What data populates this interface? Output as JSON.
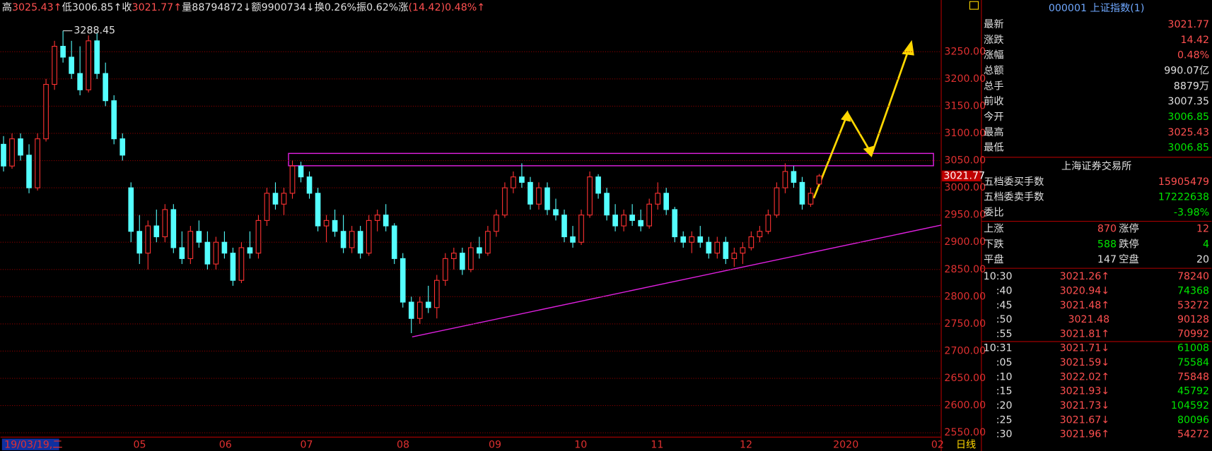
{
  "top_bar": {
    "items": [
      {
        "label": "高",
        "value": "3025.43↑",
        "color": "#ff5050"
      },
      {
        "label": "低",
        "value": "3006.85↑",
        "color": "#e0e0e0"
      },
      {
        "label": "收",
        "value": "3021.77↑",
        "color": "#ff5050"
      },
      {
        "label": "量",
        "value": "88794872↓",
        "color": "#e0e0e0"
      },
      {
        "label": "额",
        "value": "9900734↓",
        "color": "#e0e0e0"
      },
      {
        "label": "换",
        "value": "0.26%",
        "color": "#e0e0e0"
      },
      {
        "label": "振",
        "value": "0.62%",
        "color": "#e0e0e0"
      },
      {
        "label": "涨",
        "value": "(14.42)0.48%↑",
        "color": "#ff5050"
      }
    ]
  },
  "chart": {
    "type": "candlestick",
    "peak": 3288.45,
    "last_price": 3021.77,
    "ylim": [
      2542,
      3345
    ],
    "yticks": [
      {
        "value": 2550,
        "label": "2550.00"
      },
      {
        "value": 2600,
        "label": "2600.00"
      },
      {
        "value": 2650,
        "label": "2650.00"
      },
      {
        "value": 2700,
        "label": "2700.00"
      },
      {
        "value": 2750,
        "label": "2750.00"
      },
      {
        "value": 2800,
        "label": "2800.00"
      },
      {
        "value": 2850,
        "label": "2850.00"
      },
      {
        "value": 2900,
        "label": "2900.00"
      },
      {
        "value": 2950,
        "label": "2950.00"
      },
      {
        "value": 3000,
        "label": "3000.00"
      },
      {
        "value": 3050,
        "label": "3050.00"
      },
      {
        "value": 3100,
        "label": "3100.00"
      },
      {
        "value": 3150,
        "label": "3150.00"
      },
      {
        "value": 3200,
        "label": "3200.00"
      },
      {
        "value": 3250,
        "label": "3250.00"
      }
    ],
    "x_labels": [
      "19/03/19,二",
      "05",
      "06",
      "07",
      "08",
      "09",
      "10",
      "11",
      "12",
      "2020",
      "02"
    ],
    "period": "日线",
    "up_color": "#ff3232",
    "down_color": "#54ffff",
    "grid_color": "#8b0000",
    "open": [
      3080,
      3040,
      3090,
      3060,
      3000,
      3090,
      3190,
      3260,
      3240,
      3210,
      3180,
      3270,
      3210,
      3160,
      3090,
      3000,
      2920,
      2880,
      2930,
      2910,
      2960,
      2890,
      2870,
      2920,
      2900,
      2860,
      2900,
      2880,
      2830,
      2890,
      2880,
      2940,
      2990,
      2970,
      2990,
      3040,
      3020,
      2990,
      2930,
      2940,
      2920,
      2890,
      2920,
      2880,
      2940,
      2950,
      2930,
      2870,
      2790,
      2760,
      2790,
      2780,
      2830,
      2870,
      2880,
      2850,
      2890,
      2880,
      2920,
      2950,
      3000,
      3020,
      3010,
      2970,
      3000,
      2960,
      2950,
      2910,
      2900,
      2950,
      3020,
      2990,
      2950,
      2930,
      2950,
      2940,
      2930,
      2970,
      2990,
      2960,
      2910,
      2900,
      2910,
      2900,
      2880,
      2900,
      2870,
      2880,
      2890,
      2910,
      2920,
      2950,
      3000,
      3030,
      3010,
      2970,
      3006.85
    ],
    "high": [
      3095,
      3100,
      3100,
      3080,
      3100,
      3200,
      3270,
      3288.45,
      3270,
      3260,
      3280,
      3285,
      3230,
      3170,
      3100,
      3010,
      2950,
      2940,
      2960,
      2970,
      2970,
      2920,
      2930,
      2940,
      2920,
      2910,
      2920,
      2890,
      2900,
      2920,
      2950,
      3000,
      3010,
      3000,
      3050,
      3048,
      3030,
      3000,
      2950,
      2960,
      2950,
      2930,
      2930,
      2950,
      2960,
      2970,
      2935,
      2880,
      2800,
      2800,
      2820,
      2840,
      2880,
      2890,
      2890,
      2900,
      2910,
      2930,
      2960,
      3010,
      3030,
      3045,
      3020,
      3010,
      3010,
      2980,
      2960,
      2930,
      2960,
      3030,
      3025,
      3000,
      2970,
      2960,
      2970,
      2960,
      2980,
      3010,
      3000,
      2965,
      2920,
      2920,
      2930,
      2910,
      2910,
      2910,
      2890,
      2900,
      2920,
      2930,
      2960,
      3010,
      3045,
      3040,
      3020,
      3000,
      3025.43
    ],
    "low": [
      3030,
      3035,
      3050,
      2990,
      2995,
      3085,
      3180,
      3230,
      3200,
      3170,
      3175,
      3200,
      3150,
      3080,
      3050,
      2900,
      2860,
      2850,
      2900,
      2900,
      2880,
      2860,
      2860,
      2890,
      2850,
      2850,
      2870,
      2820,
      2825,
      2870,
      2870,
      2930,
      2960,
      2950,
      2980,
      3010,
      2980,
      2920,
      2900,
      2910,
      2880,
      2880,
      2870,
      2875,
      2920,
      2920,
      2860,
      2780,
      2733,
      2750,
      2770,
      2760,
      2820,
      2850,
      2840,
      2845,
      2870,
      2875,
      2910,
      2945,
      2990,
      3000,
      2960,
      2960,
      2950,
      2940,
      2900,
      2890,
      2895,
      2945,
      2980,
      2940,
      2920,
      2920,
      2930,
      2920,
      2925,
      2960,
      2950,
      2900,
      2890,
      2880,
      2890,
      2870,
      2870,
      2860,
      2855,
      2860,
      2885,
      2900,
      2915,
      2945,
      2990,
      3000,
      2960,
      2965,
      3006.85
    ],
    "close": [
      3040,
      3090,
      3060,
      3000,
      3090,
      3190,
      3260,
      3240,
      3210,
      3180,
      3270,
      3210,
      3160,
      3090,
      3060,
      2920,
      2880,
      2930,
      2910,
      2960,
      2890,
      2870,
      2920,
      2900,
      2860,
      2900,
      2880,
      2830,
      2890,
      2880,
      2940,
      2990,
      2970,
      2990,
      3040,
      3020,
      2990,
      2930,
      2940,
      2920,
      2890,
      2920,
      2880,
      2940,
      2950,
      2930,
      2870,
      2790,
      2760,
      2790,
      2780,
      2830,
      2870,
      2880,
      2850,
      2890,
      2880,
      2920,
      2950,
      3000,
      3020,
      3010,
      2970,
      3000,
      2960,
      2950,
      2910,
      2900,
      2950,
      3020,
      2990,
      2950,
      2930,
      2950,
      2940,
      2930,
      2970,
      2990,
      2960,
      2910,
      2900,
      2910,
      2900,
      2880,
      2900,
      2870,
      2880,
      2890,
      2910,
      2920,
      2950,
      3000,
      3030,
      3010,
      2970,
      2990,
      3021.77
    ]
  },
  "panel": {
    "title": "000001 上证指数(1)",
    "quote": [
      {
        "label": "最新",
        "value": "3021.77",
        "color": "#ff5050"
      },
      {
        "label": "涨跌",
        "value": "14.42",
        "color": "#ff5050"
      },
      {
        "label": "涨幅",
        "value": "0.48%",
        "color": "#ff5050"
      },
      {
        "label": "总额",
        "value": "990.07亿",
        "color": "#e0e0e0"
      },
      {
        "label": "总手",
        "value": "8879万",
        "color": "#e0e0e0"
      },
      {
        "label": "前收",
        "value": "3007.35",
        "color": "#e0e0e0"
      },
      {
        "label": "今开",
        "value": "3006.85",
        "color": "#00e600"
      },
      {
        "label": "最高",
        "value": "3025.43",
        "color": "#ff5050"
      },
      {
        "label": "最低",
        "value": "3006.85",
        "color": "#00e600"
      }
    ],
    "exchange": "上海证券交易所",
    "orders": [
      {
        "label": "五档委买手数",
        "value": "15905479",
        "color": "#ff5050"
      },
      {
        "label": "五档委卖手数",
        "value": "17222638",
        "color": "#00e600"
      },
      {
        "label": "委比",
        "value": "-3.98%",
        "color": "#00e600"
      }
    ],
    "stats": [
      {
        "label": "上涨",
        "value": "870",
        "label2": "涨停",
        "value2": "12",
        "color": "#ff5050"
      },
      {
        "label": "下跌",
        "value": "588",
        "label2": "跌停",
        "value2": "4",
        "color": "#00e600"
      },
      {
        "label": "平盘",
        "value": "147",
        "label2": "空盘",
        "value2": "20",
        "color": "#e0e0e0"
      }
    ],
    "ticks": [
      {
        "time": "10:30",
        "price": "3021.26↑",
        "volume": "78240",
        "color": "#ff5050"
      },
      {
        "time": ":40",
        "price": "3020.94↓",
        "volume": "74368",
        "color": "#00e600"
      },
      {
        "time": ":45",
        "price": "3021.48↑",
        "volume": "53272",
        "color": "#ff5050"
      },
      {
        "time": ":50",
        "price": "3021.48",
        "volume": "90128",
        "color": "#ff5050"
      },
      {
        "time": ":55",
        "price": "3021.81↑",
        "volume": "70992",
        "color": "#ff5050"
      },
      {
        "time": "10:31",
        "price": "3021.71↓",
        "volume": "61008",
        "color": "#00e600"
      },
      {
        "time": ":05",
        "price": "3021.59↓",
        "volume": "75584",
        "color": "#00e600"
      },
      {
        "time": ":10",
        "price": "3022.02↑",
        "volume": "75848",
        "color": "#ff5050"
      },
      {
        "time": ":15",
        "price": "3021.93↓",
        "volume": "45792",
        "color": "#00e600"
      },
      {
        "time": ":20",
        "price": "3021.73↓",
        "volume": "104592",
        "color": "#00e600"
      },
      {
        "time": ":25",
        "price": "3021.67↓",
        "volume": "80096",
        "color": "#00e600"
      },
      {
        "time": ":30",
        "price": "3021.96↑",
        "volume": "54272",
        "color": "#ff5050"
      }
    ]
  }
}
